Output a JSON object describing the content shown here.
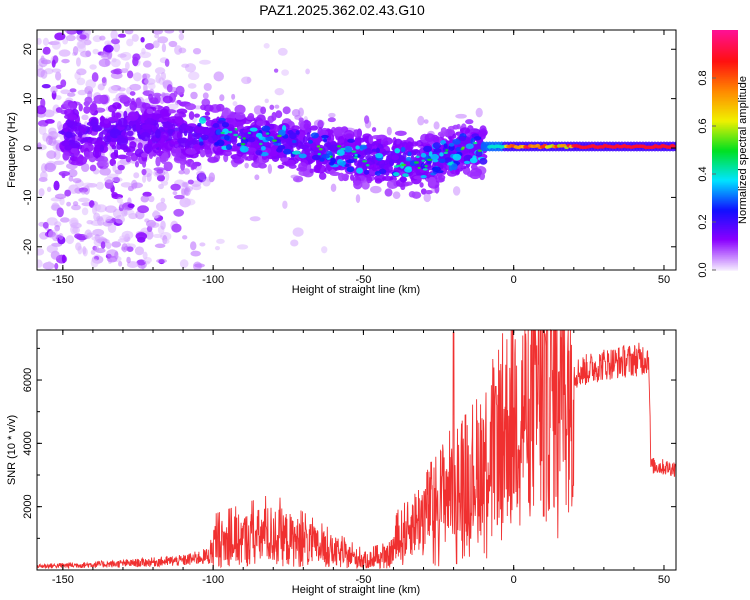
{
  "chart_data": [
    {
      "type": "heatmap",
      "title": "PAZ1.2025.362.02.43.G10",
      "xlabel": "Height of straight line (km)",
      "ylabel": "Frequency (Hz)",
      "xlim": [
        -158.6,
        54
      ],
      "ylim": [
        -24.7,
        23.9
      ],
      "xticks": [
        "-150",
        "-100",
        "-50",
        "0",
        "50"
      ],
      "xtick_values": [
        -150,
        -100,
        -50,
        0,
        50
      ],
      "yticks": [
        "-20",
        "-10",
        "0",
        "10",
        "20"
      ],
      "ytick_values": [
        -20,
        -10,
        0,
        10,
        20
      ],
      "colorbar": {
        "label": "Normalized spectral amplitude",
        "range": [
          0,
          1
        ],
        "ticks": [
          "0.0",
          "0.2",
          "0.4",
          "0.6",
          "0.8"
        ],
        "tick_values": [
          0,
          0.2,
          0.4,
          0.6,
          0.8
        ],
        "colors": [
          "#f2e6ff",
          "#8a00ff",
          "#1010ff",
          "#00e5ff",
          "#00e020",
          "#f0f000",
          "#ff8800",
          "#ff1010",
          "#ff1090"
        ]
      },
      "ridge": [
        [
          -158,
          3
        ],
        [
          -140,
          3
        ],
        [
          -100,
          3
        ],
        [
          -75,
          1
        ],
        [
          -50,
          -2
        ],
        [
          -30,
          -3
        ],
        [
          -15,
          0
        ],
        [
          0,
          0.5
        ],
        [
          54,
          0
        ]
      ],
      "scatter_region": {
        "x": [
          -158,
          -110
        ],
        "freq": [
          -24,
          24
        ],
        "amplitude": 0.12
      },
      "peak_region": {
        "x": [
          -8,
          54
        ],
        "freq": 0.3,
        "amplitude": 0.9
      }
    },
    {
      "type": "line",
      "xlabel": "Height of straight line (km)",
      "ylabel": "SNR (10 * v/v)",
      "xlim": [
        -158.6,
        54
      ],
      "ylim": [
        0,
        7580
      ],
      "xticks": [
        "-150",
        "-100",
        "-50",
        "0",
        "50"
      ],
      "xtick_values": [
        -150,
        -100,
        -50,
        0,
        50
      ],
      "yticks": [
        "2000",
        "4000",
        "6000"
      ],
      "ytick_values": [
        2000,
        4000,
        6000
      ],
      "color": "#f03030",
      "trend": [
        [
          -158,
          120
        ],
        [
          -130,
          200
        ],
        [
          -110,
          300
        ],
        [
          -101,
          450
        ],
        [
          -100,
          800
        ],
        [
          -80,
          1100
        ],
        [
          -65,
          700
        ],
        [
          -50,
          300
        ],
        [
          -42,
          400
        ],
        [
          -36,
          1200
        ],
        [
          -25,
          2300
        ],
        [
          -20,
          2800
        ],
        [
          -12,
          3300
        ],
        [
          -5,
          4300
        ],
        [
          0,
          4900
        ],
        [
          5,
          5200
        ],
        [
          10,
          5500
        ],
        [
          15,
          5800
        ],
        [
          20,
          6200
        ],
        [
          30,
          6500
        ],
        [
          45,
          6700
        ],
        [
          45.6,
          3300
        ],
        [
          54,
          3200
        ]
      ],
      "spikes": [
        [
          -20,
          7500
        ],
        [
          -19,
          200
        ],
        [
          -6,
          5800
        ],
        [
          10,
          1700
        ],
        [
          12.5,
          7550
        ]
      ]
    }
  ]
}
